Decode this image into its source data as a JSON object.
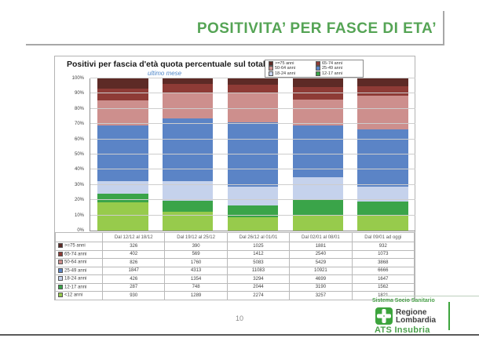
{
  "slide": {
    "title": "POSITIVITA’ PER FASCE DI ETA’",
    "page_number": "10"
  },
  "chart": {
    "title": "Positivi per fascia d'età quota percentuale sul totale",
    "subtitle": "ultimo mese"
  },
  "chart_data": {
    "type": "bar",
    "stacked": true,
    "percent_of_total": true,
    "title": "Positivi per fascia d'età quota percentuale sul totale",
    "subtitle": "ultimo mese",
    "xlabel": "",
    "ylabel": "",
    "ylim": [
      0,
      100
    ],
    "grid": true,
    "legend_position": "top-right",
    "y_ticks": [
      "0%",
      "10%",
      "20%",
      "30%",
      "40%",
      "50%",
      "60%",
      "70%",
      "80%",
      "90%",
      "100%"
    ],
    "categories": [
      "Dal 12/12 al 18/12",
      "Dal 19/12 al 25/12",
      "Dal 26/12 al 01/01",
      "Dal 02/01 al 08/01",
      "Dal 09/01 ad oggi"
    ],
    "series": [
      {
        "name": ">=75 anni",
        "color": "#5d2a26",
        "in_legend": true,
        "values": [
          326,
          390,
          1025,
          1881,
          932
        ]
      },
      {
        "name": "65-74 anni",
        "color": "#8e3b36",
        "in_legend": true,
        "values": [
          402,
          569,
          1412,
          2540,
          1073
        ]
      },
      {
        "name": "50-64 anni",
        "color": "#cd8f8d",
        "in_legend": true,
        "values": [
          826,
          1760,
          5083,
          5429,
          3868
        ]
      },
      {
        "name": "25-49 anni",
        "color": "#5b84c6",
        "in_legend": true,
        "values": [
          1847,
          4313,
          11083,
          10921,
          6666
        ]
      },
      {
        "name": "18-24 anni",
        "color": "#c5d2ec",
        "in_legend": true,
        "values": [
          426,
          1354,
          3294,
          4699,
          1647
        ]
      },
      {
        "name": "12-17 anni",
        "color": "#3aa449",
        "in_legend": true,
        "values": [
          287,
          748,
          2044,
          3190,
          1562
        ]
      },
      {
        "name": "<12 anni",
        "color": "#97cb4c",
        "in_legend": false,
        "values": [
          930,
          1289,
          2274,
          3257,
          1821
        ]
      }
    ]
  },
  "footer": {
    "brand_top": "Sistema Socio Sanitario",
    "brand_name_line1": "Regione",
    "brand_name_line2": "Lombardia",
    "brand_sub": "ATS Insubria"
  }
}
